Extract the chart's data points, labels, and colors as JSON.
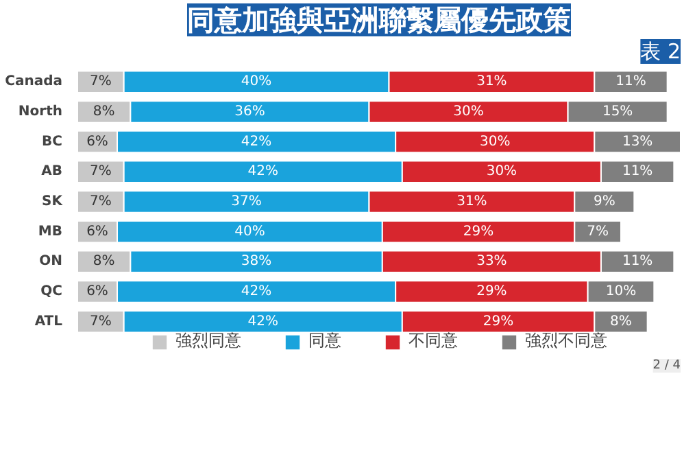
{
  "chart_data": {
    "type": "bar",
    "orientation": "horizontal",
    "stacked": true,
    "title": "同意加強與亞洲聯繫屬優先政策",
    "subtitle": "表 2",
    "categories": [
      "Canada",
      "North",
      "BC",
      "AB",
      "SK",
      "MB",
      "ON",
      "QC",
      "ATL"
    ],
    "series": [
      {
        "name": "強烈同意",
        "color": "#c8c8c8",
        "values": [
          7,
          8,
          6,
          7,
          7,
          6,
          8,
          6,
          7
        ],
        "value_labels": [
          "7%",
          "8%",
          "6%",
          "7%",
          "7%",
          "6%",
          "8%",
          "6%",
          "7%"
        ]
      },
      {
        "name": "同意",
        "color": "#1aa3dc",
        "values": [
          40,
          36,
          42,
          42,
          37,
          40,
          38,
          42,
          42
        ],
        "value_labels": [
          "40%",
          "36%",
          "42%",
          "42%",
          "37%",
          "40%",
          "38%",
          "42%",
          "42%"
        ]
      },
      {
        "name": "不同意",
        "color": "#d7262e",
        "values": [
          31,
          30,
          30,
          30,
          31,
          29,
          33,
          29,
          29
        ],
        "value_labels": [
          "31%",
          "30%",
          "30%",
          "30%",
          "31%",
          "29%",
          "33%",
          "29%",
          "29%"
        ]
      },
      {
        "name": "強烈不同意",
        "color": "#7f7f7f",
        "values": [
          11,
          15,
          13,
          11,
          9,
          7,
          11,
          10,
          8
        ],
        "value_labels": [
          "11%",
          "15%",
          "13%",
          "11%",
          "9%",
          "7%",
          "11%",
          "10%",
          "8%"
        ]
      }
    ],
    "legend": "bottom",
    "annotations": [
      "2 / 4"
    ]
  }
}
